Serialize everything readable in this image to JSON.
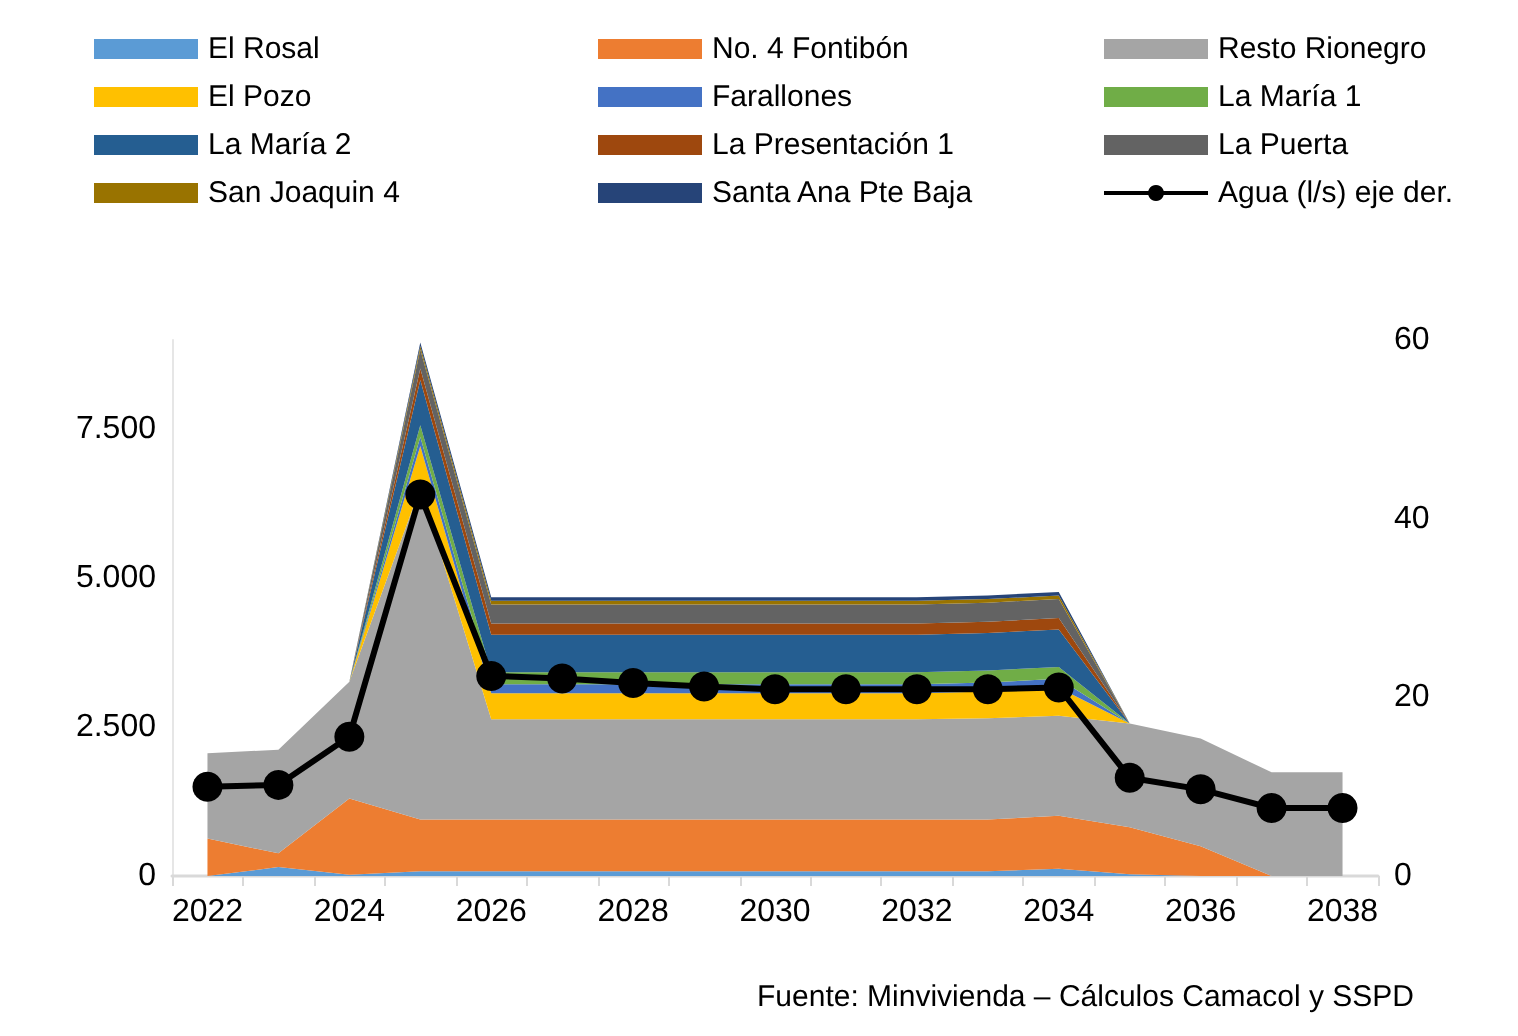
{
  "chart_data": {
    "type": "area",
    "stacked": true,
    "categories": [
      "2022",
      null,
      "2024",
      null,
      "2026",
      null,
      "2028",
      null,
      "2030",
      null,
      "2032",
      null,
      "2034",
      null,
      "2036",
      null,
      "2038"
    ],
    "series": [
      {
        "name": "El Rosal",
        "color": "#5b9bd5",
        "values": [
          0,
          150,
          20,
          80,
          80,
          80,
          80,
          80,
          80,
          80,
          80,
          80,
          120,
          30,
          0,
          0,
          0
        ]
      },
      {
        "name": "No. 4 Fontibón",
        "color": "#ed7d31",
        "values": [
          630,
          230,
          1280,
          870,
          870,
          870,
          870,
          870,
          870,
          870,
          870,
          870,
          890,
          790,
          500,
          0,
          0
        ]
      },
      {
        "name": "Resto Rionegro",
        "color": "#a5a5a5",
        "values": [
          1430,
          1740,
          1960,
          5570,
          1680,
          1680,
          1680,
          1680,
          1680,
          1680,
          1680,
          1700,
          1680,
          1740,
          1810,
          1740,
          1740
        ]
      },
      {
        "name": "El Pozo",
        "color": "#ffc000",
        "values": [
          0,
          0,
          0,
          700,
          440,
          440,
          440,
          440,
          440,
          440,
          440,
          450,
          470,
          0,
          0,
          0,
          0
        ]
      },
      {
        "name": "Farallones",
        "color": "#4472c4",
        "values": [
          0,
          0,
          0,
          150,
          150,
          150,
          150,
          150,
          150,
          150,
          150,
          150,
          150,
          0,
          0,
          0,
          0
        ]
      },
      {
        "name": "La María 1",
        "color": "#70ad47",
        "values": [
          0,
          0,
          0,
          200,
          200,
          200,
          200,
          200,
          200,
          200,
          200,
          200,
          200,
          0,
          0,
          0,
          0
        ]
      },
      {
        "name": "La María 2",
        "color": "#255e91",
        "values": [
          0,
          0,
          0,
          760,
          630,
          630,
          630,
          630,
          630,
          630,
          630,
          630,
          630,
          0,
          0,
          0,
          0
        ]
      },
      {
        "name": "La Presentación 1",
        "color": "#9e480e",
        "values": [
          0,
          0,
          0,
          190,
          190,
          190,
          190,
          190,
          190,
          190,
          190,
          190,
          190,
          0,
          0,
          0,
          0
        ]
      },
      {
        "name": "La Puerta",
        "color": "#636363",
        "values": [
          0,
          0,
          0,
          320,
          320,
          320,
          320,
          320,
          320,
          320,
          320,
          320,
          320,
          0,
          0,
          0,
          0
        ]
      },
      {
        "name": "San Joaquin 4",
        "color": "#997300",
        "values": [
          0,
          0,
          0,
          60,
          60,
          60,
          60,
          60,
          60,
          60,
          60,
          60,
          60,
          0,
          0,
          0,
          0
        ]
      },
      {
        "name": "Santa Ana Pte Baja",
        "color": "#264478",
        "values": [
          0,
          0,
          0,
          60,
          60,
          60,
          60,
          60,
          60,
          60,
          60,
          60,
          60,
          0,
          0,
          0,
          0
        ]
      },
      {
        "name": "Agua (l/s) eje der.",
        "type": "line",
        "axis": "y2",
        "color": "#000000",
        "marker": "circle",
        "values": [
          10,
          10.2,
          15.6,
          42.7,
          22.4,
          22.1,
          21.6,
          21.2,
          20.9,
          20.9,
          20.9,
          20.9,
          21.1,
          11,
          9.7,
          7.6,
          7.6
        ]
      }
    ],
    "ylim": [
      0,
      9000
    ],
    "yticks": [
      0,
      {
        "value": 2500,
        "label": "2.500"
      },
      {
        "value": 5000,
        "label": "5.000"
      },
      {
        "value": 7500,
        "label": "7.500"
      }
    ],
    "y2lim": [
      0,
      60
    ],
    "y2ticks": [
      0,
      20,
      40,
      60
    ],
    "legend": "top",
    "grid": false,
    "annotations": [
      "Fuente: Minvivienda – Cálculos Camacol y SSPD"
    ]
  }
}
